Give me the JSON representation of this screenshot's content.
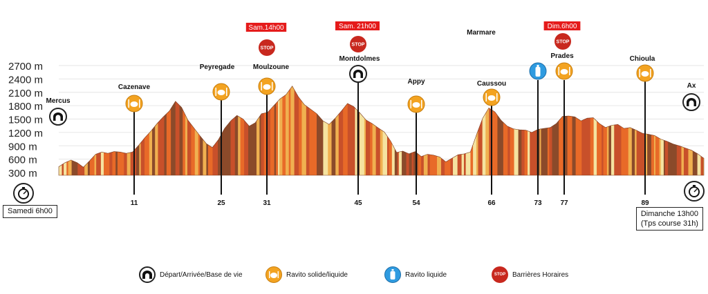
{
  "chart_data": {
    "type": "area",
    "title": "",
    "xlabel": "",
    "ylabel": "",
    "ylim": [
      300,
      2700
    ],
    "y_ticks": [
      "300 m",
      "600 m",
      "900 m",
      "1200 m",
      "1500 m",
      "1800 m",
      "2100 m",
      "2400 m",
      "2700 m"
    ],
    "y_tick_values": [
      300,
      600,
      900,
      1200,
      1500,
      1800,
      2100,
      2400,
      2700
    ],
    "xlim": [
      0,
      105
    ],
    "grid": true,
    "profile": [
      [
        0,
        430
      ],
      [
        1,
        520
      ],
      [
        2,
        580
      ],
      [
        3,
        520
      ],
      [
        4,
        420
      ],
      [
        5,
        560
      ],
      [
        6,
        710
      ],
      [
        7,
        760
      ],
      [
        8,
        730
      ],
      [
        9,
        770
      ],
      [
        10,
        760
      ],
      [
        11,
        730
      ],
      [
        12,
        760
      ],
      [
        13,
        910
      ],
      [
        14,
        1080
      ],
      [
        15,
        1230
      ],
      [
        16,
        1400
      ],
      [
        17,
        1550
      ],
      [
        18,
        1680
      ],
      [
        19,
        1900
      ],
      [
        20,
        1760
      ],
      [
        21,
        1480
      ],
      [
        22,
        1300
      ],
      [
        23,
        1120
      ],
      [
        24,
        950
      ],
      [
        25,
        860
      ],
      [
        26,
        1040
      ],
      [
        27,
        1290
      ],
      [
        28,
        1460
      ],
      [
        29,
        1580
      ],
      [
        30,
        1500
      ],
      [
        31,
        1340
      ],
      [
        32,
        1420
      ],
      [
        33,
        1620
      ],
      [
        34,
        1650
      ],
      [
        35,
        1800
      ],
      [
        36,
        1950
      ],
      [
        37,
        2050
      ],
      [
        38,
        2240
      ],
      [
        39,
        2000
      ],
      [
        40,
        1820
      ],
      [
        41,
        1720
      ],
      [
        42,
        1620
      ],
      [
        43,
        1460
      ],
      [
        44,
        1380
      ],
      [
        45,
        1520
      ],
      [
        46,
        1680
      ],
      [
        47,
        1850
      ],
      [
        48,
        1780
      ],
      [
        49,
        1640
      ],
      [
        50,
        1480
      ],
      [
        51,
        1400
      ],
      [
        52,
        1300
      ],
      [
        53,
        1210
      ],
      [
        54,
        1010
      ],
      [
        55,
        750
      ],
      [
        56,
        780
      ],
      [
        57,
        720
      ],
      [
        58,
        770
      ],
      [
        59,
        660
      ],
      [
        60,
        710
      ],
      [
        61,
        690
      ],
      [
        62,
        650
      ],
      [
        63,
        540
      ],
      [
        64,
        620
      ],
      [
        65,
        700
      ],
      [
        66,
        720
      ],
      [
        67,
        760
      ],
      [
        68,
        1150
      ],
      [
        69,
        1520
      ],
      [
        70,
        1750
      ],
      [
        71,
        1660
      ],
      [
        72,
        1470
      ],
      [
        73,
        1340
      ],
      [
        74,
        1280
      ],
      [
        75,
        1260
      ],
      [
        76,
        1250
      ],
      [
        77,
        1200
      ],
      [
        78,
        1270
      ],
      [
        79,
        1290
      ],
      [
        80,
        1310
      ],
      [
        81,
        1400
      ],
      [
        82,
        1560
      ],
      [
        83,
        1570
      ],
      [
        84,
        1550
      ],
      [
        85,
        1460
      ],
      [
        86,
        1520
      ],
      [
        87,
        1530
      ],
      [
        88,
        1400
      ],
      [
        89,
        1310
      ],
      [
        90,
        1360
      ],
      [
        91,
        1380
      ],
      [
        92,
        1290
      ],
      [
        93,
        1310
      ],
      [
        94,
        1250
      ],
      [
        95,
        1180
      ],
      [
        96,
        1160
      ],
      [
        97,
        1130
      ],
      [
        98,
        1050
      ],
      [
        99,
        1000
      ],
      [
        100,
        940
      ],
      [
        101,
        900
      ],
      [
        102,
        850
      ],
      [
        103,
        800
      ],
      [
        104,
        720
      ],
      [
        105,
        620
      ]
    ],
    "waypoints": [
      {
        "name": "Mercus",
        "km": "",
        "icon": "base",
        "barrier": ""
      },
      {
        "name": "Cazenave",
        "km": "11",
        "icon": "ravito-solide",
        "barrier": ""
      },
      {
        "name": "Peyregade",
        "km": "25",
        "icon": "ravito-solide",
        "barrier": ""
      },
      {
        "name": "Moulzoune",
        "km": "31",
        "icon": "ravito-solide",
        "barrier": "Sam.14h00"
      },
      {
        "name": "Montdolmes",
        "km": "45",
        "icon": "base",
        "barrier": "Sam. 21h00"
      },
      {
        "name": "Appy",
        "km": "54",
        "icon": "ravito-solide",
        "barrier": ""
      },
      {
        "name": "Marmare",
        "km": "",
        "icon": "",
        "barrier": ""
      },
      {
        "name": "Caussou",
        "km": "66",
        "icon": "ravito-solide",
        "barrier": ""
      },
      {
        "name": "",
        "km": "73",
        "icon": "ravito-liquide",
        "barrier": ""
      },
      {
        "name": "Prades",
        "km": "77",
        "icon": "ravito-solide",
        "barrier": "Dim.6h00"
      },
      {
        "name": "Chioula",
        "km": "89",
        "icon": "ravito-solide",
        "barrier": ""
      },
      {
        "name": "Ax",
        "km": "",
        "icon": "base",
        "barrier": ""
      }
    ],
    "stop_label": "STOP",
    "start": {
      "label": "Samedi 6h00",
      "icon": "stopwatch-icon"
    },
    "finish": {
      "label": "Dimanche 13h00",
      "sublabel": "(Tps course 31h)",
      "icon": "stopwatch-icon"
    }
  },
  "legend": [
    {
      "label": "Départ/Arrivée/Base de vie",
      "icon": "base"
    },
    {
      "label": "Ravito solide/liquide",
      "icon": "ravito-solide"
    },
    {
      "label": "Ravito liquide",
      "icon": "ravito-liquide"
    },
    {
      "label": "Barrières Horaires",
      "icon": "stop"
    }
  ],
  "colors": {
    "orange": "#f3a321",
    "orange_border": "#c77e0f",
    "blue": "#2f9be0",
    "red": "#c8281e",
    "barrier_bg": "#e51b1b",
    "stripe_a": "#8b4a2a",
    "stripe_b": "#c8502a",
    "stripe_c": "#e86a28",
    "stripe_d": "#f0b050",
    "stripe_e": "#f5e3a0",
    "grid": "#e6e6e6"
  }
}
